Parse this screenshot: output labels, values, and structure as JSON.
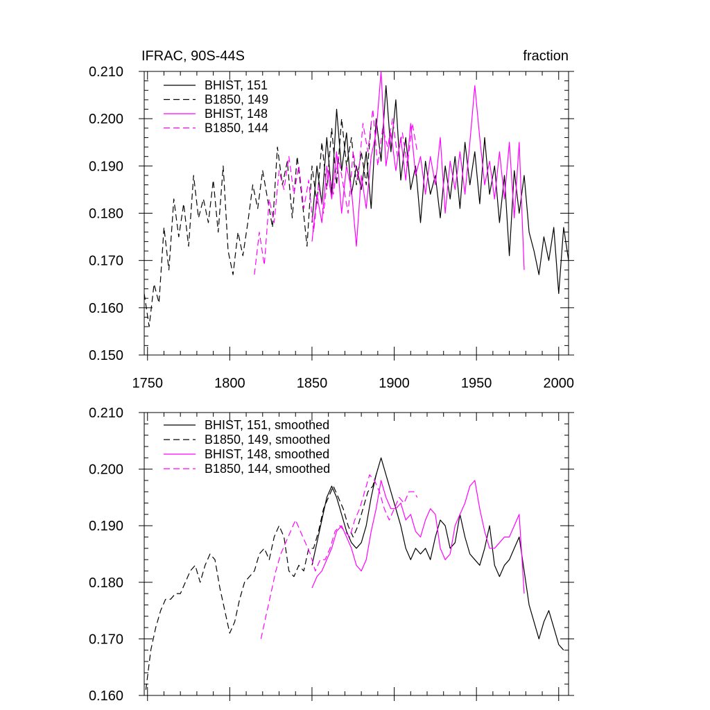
{
  "chart_data": [
    {
      "type": "line",
      "title_left": "IFRAC, 90S-44S",
      "title_right": "fraction",
      "xlim": [
        1748,
        2006
      ],
      "ylim": [
        0.15,
        0.21
      ],
      "xticks": [
        1750,
        1800,
        1850,
        1900,
        1950,
        2000
      ],
      "xtick_labels": [
        "1750",
        "1800",
        "1850",
        "1900",
        "1950",
        "2000"
      ],
      "yticks": [
        0.15,
        0.16,
        0.17,
        0.18,
        0.19,
        0.2,
        0.21
      ],
      "ytick_labels": [
        "0.150",
        "0.160",
        "0.170",
        "0.180",
        "0.190",
        "0.200",
        "0.210"
      ],
      "series": [
        {
          "name": "BHIST, 151",
          "color": "#000000",
          "dash": "solid",
          "x": [
            1850,
            1853,
            1856,
            1859,
            1862,
            1865,
            1868,
            1871,
            1874,
            1877,
            1880,
            1883,
            1886,
            1889,
            1892,
            1895,
            1898,
            1901,
            1904,
            1907,
            1910,
            1913,
            1916,
            1919,
            1922,
            1925,
            1928,
            1931,
            1934,
            1937,
            1940,
            1943,
            1946,
            1949,
            1952,
            1955,
            1958,
            1961,
            1964,
            1967,
            1970,
            1973,
            1976,
            1979,
            1982,
            1985,
            1988,
            1991,
            1994,
            1997,
            2000,
            2003,
            2006
          ],
          "values": [
            0.178,
            0.19,
            0.182,
            0.196,
            0.184,
            0.202,
            0.189,
            0.197,
            0.184,
            0.19,
            0.185,
            0.193,
            0.181,
            0.2,
            0.191,
            0.207,
            0.193,
            0.204,
            0.187,
            0.196,
            0.185,
            0.19,
            0.178,
            0.191,
            0.184,
            0.188,
            0.179,
            0.19,
            0.183,
            0.192,
            0.181,
            0.195,
            0.186,
            0.193,
            0.182,
            0.196,
            0.184,
            0.19,
            0.178,
            0.188,
            0.171,
            0.189,
            0.18,
            0.188,
            0.176,
            0.172,
            0.167,
            0.175,
            0.17,
            0.177,
            0.163,
            0.177,
            0.17
          ]
        },
        {
          "name": "B1850, 149",
          "color": "#000000",
          "dash": "dashed",
          "x": [
            1748,
            1751,
            1754,
            1757,
            1760,
            1763,
            1766,
            1769,
            1772,
            1775,
            1778,
            1781,
            1784,
            1787,
            1790,
            1793,
            1796,
            1799,
            1802,
            1805,
            1808,
            1811,
            1814,
            1817,
            1820,
            1823,
            1826,
            1829,
            1832,
            1835,
            1838,
            1841,
            1844,
            1847,
            1850,
            1853,
            1856,
            1859,
            1862,
            1865,
            1868,
            1871,
            1874,
            1877,
            1880,
            1883,
            1886
          ],
          "values": [
            0.163,
            0.156,
            0.165,
            0.161,
            0.177,
            0.168,
            0.183,
            0.175,
            0.182,
            0.173,
            0.188,
            0.179,
            0.183,
            0.178,
            0.187,
            0.176,
            0.19,
            0.172,
            0.167,
            0.176,
            0.171,
            0.178,
            0.186,
            0.181,
            0.189,
            0.183,
            0.177,
            0.194,
            0.186,
            0.191,
            0.179,
            0.192,
            0.183,
            0.173,
            0.19,
            0.182,
            0.195,
            0.185,
            0.198,
            0.186,
            0.2,
            0.19,
            0.196,
            0.186,
            0.193,
            0.186,
            0.199
          ]
        },
        {
          "name": "BHIST, 148",
          "color": "#ff00ff",
          "dash": "solid",
          "x": [
            1850,
            1853,
            1856,
            1859,
            1862,
            1865,
            1868,
            1871,
            1874,
            1877,
            1880,
            1883,
            1886,
            1889,
            1892,
            1895,
            1898,
            1901,
            1904,
            1907,
            1910,
            1913,
            1916,
            1919,
            1922,
            1925,
            1928,
            1931,
            1934,
            1937,
            1940,
            1943,
            1946,
            1949,
            1952,
            1955,
            1958,
            1961,
            1964,
            1967,
            1970,
            1973,
            1976,
            1979
          ],
          "values": [
            0.174,
            0.184,
            0.178,
            0.19,
            0.183,
            0.193,
            0.18,
            0.19,
            0.185,
            0.173,
            0.188,
            0.181,
            0.192,
            0.197,
            0.21,
            0.19,
            0.197,
            0.189,
            0.196,
            0.187,
            0.199,
            0.188,
            0.192,
            0.184,
            0.192,
            0.186,
            0.196,
            0.18,
            0.191,
            0.185,
            0.193,
            0.184,
            0.195,
            0.207,
            0.196,
            0.186,
            0.191,
            0.183,
            0.193,
            0.183,
            0.195,
            0.179,
            0.195,
            0.168
          ]
        },
        {
          "name": "B1850, 144",
          "color": "#ff00ff",
          "dash": "dashed",
          "x": [
            1815,
            1818,
            1821,
            1824,
            1827,
            1830,
            1833,
            1836,
            1839,
            1842,
            1845,
            1848,
            1851,
            1854,
            1857,
            1860,
            1863,
            1866,
            1869,
            1872,
            1875,
            1878,
            1881,
            1884,
            1887,
            1890,
            1893,
            1896,
            1899,
            1902,
            1905,
            1908,
            1911,
            1914
          ],
          "values": [
            0.167,
            0.176,
            0.169,
            0.183,
            0.178,
            0.189,
            0.185,
            0.192,
            0.184,
            0.19,
            0.181,
            0.187,
            0.176,
            0.186,
            0.18,
            0.189,
            0.184,
            0.192,
            0.186,
            0.18,
            0.193,
            0.187,
            0.199,
            0.193,
            0.202,
            0.19,
            0.198,
            0.194,
            0.2,
            0.192,
            0.197,
            0.19,
            0.199,
            0.193
          ]
        }
      ]
    },
    {
      "type": "line",
      "xlim": [
        1748,
        2006
      ],
      "ylim": [
        0.16,
        0.21
      ],
      "xticks": [
        1750,
        1800,
        1850,
        1900,
        1950,
        2000
      ],
      "yticks": [
        0.16,
        0.17,
        0.18,
        0.19,
        0.2,
        0.21
      ],
      "ytick_labels": [
        "0.160",
        "0.170",
        "0.180",
        "0.190",
        "0.200",
        "0.210"
      ],
      "series": [
        {
          "name": "BHIST, 151, smoothed",
          "color": "#000000",
          "dash": "solid",
          "x": [
            1850,
            1853,
            1856,
            1859,
            1862,
            1865,
            1868,
            1871,
            1874,
            1877,
            1880,
            1883,
            1886,
            1889,
            1892,
            1895,
            1898,
            1901,
            1904,
            1907,
            1910,
            1913,
            1916,
            1919,
            1922,
            1925,
            1928,
            1931,
            1934,
            1937,
            1940,
            1943,
            1946,
            1949,
            1952,
            1955,
            1958,
            1961,
            1964,
            1967,
            1970,
            1973,
            1976,
            1979,
            1982,
            1985,
            1988,
            1991,
            1994,
            1997,
            2000,
            2003
          ],
          "values": [
            0.183,
            0.187,
            0.191,
            0.195,
            0.197,
            0.195,
            0.192,
            0.189,
            0.187,
            0.186,
            0.187,
            0.19,
            0.195,
            0.199,
            0.202,
            0.199,
            0.196,
            0.193,
            0.19,
            0.186,
            0.184,
            0.186,
            0.185,
            0.186,
            0.184,
            0.188,
            0.191,
            0.19,
            0.186,
            0.187,
            0.192,
            0.188,
            0.185,
            0.184,
            0.183,
            0.186,
            0.19,
            0.183,
            0.181,
            0.183,
            0.184,
            0.186,
            0.188,
            0.182,
            0.176,
            0.173,
            0.17,
            0.173,
            0.175,
            0.172,
            0.169,
            0.168
          ]
        },
        {
          "name": "B1850, 149, smoothed",
          "color": "#000000",
          "dash": "dashed",
          "x": [
            1749,
            1752,
            1755,
            1758,
            1761,
            1764,
            1767,
            1770,
            1773,
            1776,
            1779,
            1782,
            1785,
            1788,
            1791,
            1794,
            1797,
            1800,
            1803,
            1806,
            1809,
            1812,
            1815,
            1818,
            1821,
            1824,
            1827,
            1830,
            1833,
            1836,
            1839,
            1842,
            1845,
            1848,
            1851,
            1854,
            1857,
            1860,
            1863,
            1866,
            1869,
            1872,
            1875,
            1878,
            1881,
            1884,
            1887,
            1890
          ],
          "values": [
            0.161,
            0.168,
            0.172,
            0.175,
            0.177,
            0.177,
            0.178,
            0.178,
            0.18,
            0.182,
            0.183,
            0.18,
            0.183,
            0.185,
            0.184,
            0.179,
            0.175,
            0.171,
            0.173,
            0.177,
            0.18,
            0.181,
            0.182,
            0.185,
            0.186,
            0.184,
            0.188,
            0.19,
            0.188,
            0.182,
            0.181,
            0.183,
            0.182,
            0.186,
            0.186,
            0.189,
            0.193,
            0.195,
            0.197,
            0.195,
            0.193,
            0.19,
            0.188,
            0.19,
            0.193,
            0.196,
            0.197,
            0.2
          ]
        },
        {
          "name": "BHIST, 148, smoothed",
          "color": "#ff00ff",
          "dash": "solid",
          "x": [
            1850,
            1853,
            1856,
            1859,
            1862,
            1865,
            1868,
            1871,
            1874,
            1877,
            1880,
            1883,
            1886,
            1889,
            1892,
            1895,
            1898,
            1901,
            1904,
            1907,
            1910,
            1913,
            1916,
            1919,
            1922,
            1925,
            1928,
            1931,
            1934,
            1937,
            1940,
            1943,
            1946,
            1949,
            1952,
            1955,
            1958,
            1961,
            1964,
            1967,
            1970,
            1973,
            1976,
            1979
          ],
          "values": [
            0.179,
            0.181,
            0.182,
            0.184,
            0.186,
            0.189,
            0.19,
            0.188,
            0.186,
            0.183,
            0.182,
            0.184,
            0.189,
            0.193,
            0.198,
            0.195,
            0.193,
            0.193,
            0.194,
            0.191,
            0.192,
            0.189,
            0.188,
            0.191,
            0.193,
            0.192,
            0.186,
            0.184,
            0.185,
            0.19,
            0.192,
            0.194,
            0.197,
            0.198,
            0.193,
            0.189,
            0.186,
            0.186,
            0.187,
            0.188,
            0.188,
            0.19,
            0.192,
            0.178
          ]
        },
        {
          "name": "B1850, 144, smoothed",
          "color": "#ff00ff",
          "dash": "dashed",
          "x": [
            1819,
            1822,
            1825,
            1828,
            1831,
            1834,
            1837,
            1840,
            1843,
            1846,
            1849,
            1852,
            1855,
            1858,
            1861,
            1864,
            1867,
            1870,
            1873,
            1876,
            1879,
            1882,
            1885,
            1888,
            1891,
            1894,
            1897,
            1900,
            1903,
            1906,
            1909,
            1912,
            1914
          ],
          "values": [
            0.17,
            0.174,
            0.178,
            0.182,
            0.185,
            0.187,
            0.189,
            0.191,
            0.189,
            0.187,
            0.185,
            0.182,
            0.184,
            0.184,
            0.186,
            0.189,
            0.19,
            0.189,
            0.188,
            0.191,
            0.193,
            0.196,
            0.199,
            0.198,
            0.196,
            0.193,
            0.191,
            0.193,
            0.195,
            0.194,
            0.196,
            0.196,
            0.195
          ]
        }
      ]
    }
  ]
}
